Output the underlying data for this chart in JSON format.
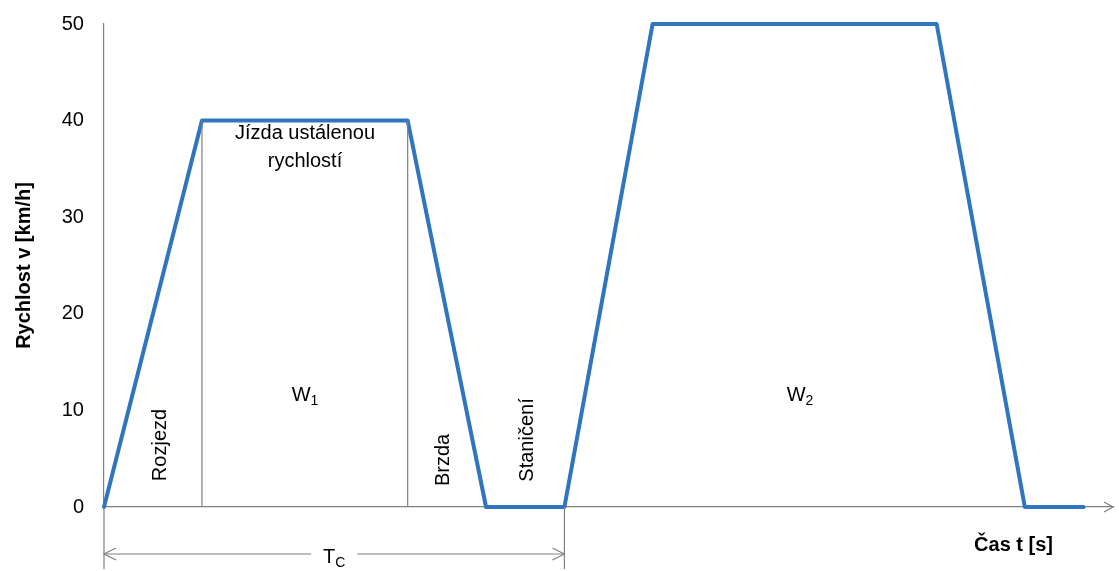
{
  "chart_data": {
    "type": "line",
    "ylabel": "Rychlost v [km/h]",
    "xlabel": "Čas t [s]",
    "categories": [
      null,
      null,
      null,
      null,
      null,
      null,
      null,
      null,
      null,
      null,
      null,
      null,
      null,
      null,
      null,
      null,
      null,
      null,
      null,
      null,
      null,
      null,
      null,
      null,
      null,
      null,
      null,
      null,
      null,
      null,
      null,
      null,
      null,
      null,
      null,
      null,
      null,
      null,
      null,
      null,
      null,
      null,
      null,
      null,
      null,
      null,
      null,
      null,
      null,
      null,
      null,
      null,
      null,
      null,
      null,
      null,
      null,
      null,
      null,
      null,
      null,
      null,
      null,
      null,
      null,
      null,
      null,
      null,
      null,
      null,
      null,
      null,
      null,
      null,
      null,
      null,
      null,
      null,
      null,
      null,
      null,
      null,
      null,
      null,
      null,
      null,
      null,
      null,
      null,
      null,
      null,
      null,
      null,
      null,
      null,
      null,
      null,
      null,
      null,
      null,
      null,
      null,
      null,
      null
    ],
    "ylim": [
      0,
      50
    ],
    "yticks": [
      0,
      10,
      20,
      30,
      40,
      50
    ],
    "tick_labels": "y",
    "grid": false,
    "legend": false,
    "marker": "none",
    "series": [
      {
        "color": "#2f75c0",
        "values": [
          0,
          null,
          null,
          null,
          null,
          null,
          null,
          null,
          null,
          null,
          40,
          null,
          null,
          null,
          null,
          null,
          null,
          null,
          null,
          null,
          null,
          null,
          null,
          null,
          null,
          null,
          null,
          null,
          null,
          null,
          null,
          40,
          null,
          null,
          null,
          null,
          null,
          null,
          null,
          0,
          null,
          null,
          null,
          null,
          null,
          null,
          null,
          0,
          null,
          null,
          null,
          null,
          null,
          null,
          null,
          null,
          50,
          null,
          null,
          null,
          null,
          null,
          null,
          null,
          null,
          null,
          null,
          null,
          null,
          null,
          null,
          null,
          null,
          null,
          null,
          null,
          null,
          null,
          null,
          null,
          null,
          null,
          null,
          null,
          null,
          50,
          null,
          null,
          null,
          null,
          null,
          null,
          null,
          null,
          0,
          null,
          null,
          null,
          null,
          null,
          0,
          null,
          null,
          null
        ]
      }
    ],
    "annotations": [
      "Jízda ustálenou rychlostí",
      "W$_{1}$",
      "Rozjezd",
      "Brzda",
      "Staničení",
      "W$_{2}$",
      "T$_{C}$"
    ]
  }
}
